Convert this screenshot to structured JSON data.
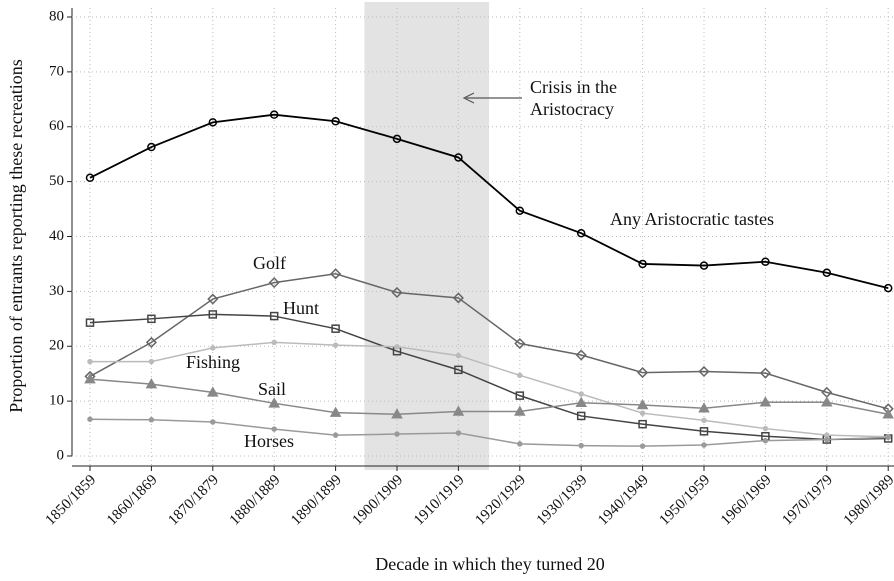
{
  "chart_data": {
    "type": "line",
    "xlabel": "Decade in which they turned 20",
    "ylabel": "Proportion of entrants reporting these recreations",
    "annotation": [
      "Crisis in the",
      "Aristocracy"
    ],
    "categories": [
      "1850/1859",
      "1860/1869",
      "1870/1879",
      "1880/1889",
      "1890/1899",
      "1900/1909",
      "1910/1919",
      "1920/1929",
      "1930/1939",
      "1940/1949",
      "1950/1959",
      "1960/1969",
      "1970/1979",
      "1980/1989"
    ],
    "ylim": [
      0,
      80
    ],
    "yticks": [
      0,
      10,
      20,
      30,
      40,
      50,
      60,
      70,
      80
    ],
    "grid": true,
    "series": [
      {
        "name": "Any Aristocratic tastes",
        "color": "#000000",
        "values": [
          50.7,
          56.3,
          60.8,
          62.2,
          61.0,
          57.8,
          54.4,
          44.7,
          40.6,
          35.0,
          34.7,
          35.4,
          33.4,
          30.6
        ]
      },
      {
        "name": "Golf",
        "color": "#666666",
        "values": [
          14.5,
          20.7,
          28.6,
          31.6,
          33.2,
          29.8,
          28.8,
          20.5,
          18.4,
          15.2,
          15.4,
          15.1,
          11.6,
          8.6
        ]
      },
      {
        "name": "Hunt",
        "color": "#444444",
        "values": [
          24.3,
          25.0,
          25.8,
          25.5,
          23.2,
          19.1,
          15.7,
          11.0,
          7.3,
          5.8,
          4.5,
          3.6,
          3.0,
          3.2
        ]
      },
      {
        "name": "Fishing",
        "color": "#bbbbbb",
        "values": [
          17.2,
          17.2,
          19.7,
          20.7,
          20.2,
          19.9,
          18.3,
          14.7,
          11.3,
          7.8,
          6.5,
          5.0,
          3.8,
          3.5
        ]
      },
      {
        "name": "Sail",
        "color": "#888888",
        "values": [
          14.0,
          13.1,
          11.6,
          9.6,
          7.9,
          7.6,
          8.1,
          8.1,
          9.7,
          9.3,
          8.7,
          9.8,
          9.8,
          7.6
        ]
      },
      {
        "name": "Horses",
        "color": "#9a9a9a",
        "values": [
          6.7,
          6.6,
          6.2,
          4.9,
          3.8,
          4.0,
          4.2,
          2.2,
          1.9,
          1.8,
          2.0,
          2.8,
          3.0,
          3.4
        ]
      }
    ]
  }
}
